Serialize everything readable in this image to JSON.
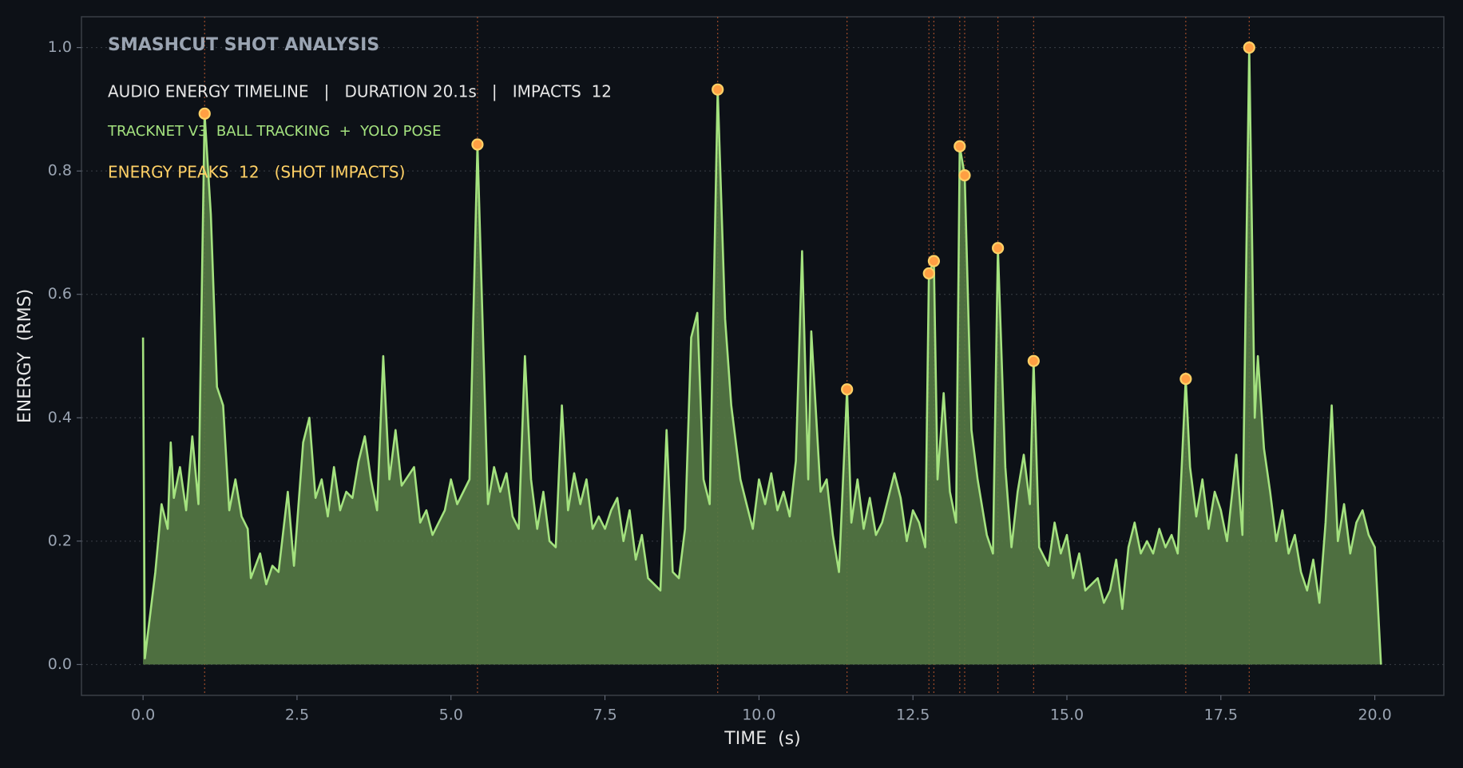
{
  "chart_data": {
    "type": "area",
    "title": "SMASHCUT  SHOT ANALYSIS",
    "subtitle": "AUDIO ENERGY TIMELINE   |   DURATION 20.1s   |   IMPACTS  12",
    "annotations": [
      {
        "text": "TRACKNET V3  BALL TRACKING  +  YOLO POSE",
        "color": "#a4e27f"
      },
      {
        "text": "ENERGY PEAKS  12   (SHOT IMPACTS)",
        "color": "#ffd166"
      }
    ],
    "xlabel": "TIME  (s)",
    "ylabel": "ENERGY  (RMS)",
    "xlim": [
      -1.0,
      21.12
    ],
    "ylim": [
      -0.05,
      1.05
    ],
    "xticks": [
      {
        "value": 0,
        "label": "0.0"
      },
      {
        "value": 2.5,
        "label": "2.5"
      },
      {
        "value": 5,
        "label": "5.0"
      },
      {
        "value": 7.5,
        "label": "7.5"
      },
      {
        "value": 10,
        "label": "10.0"
      },
      {
        "value": 12.5,
        "label": "12.5"
      },
      {
        "value": 15,
        "label": "15.0"
      },
      {
        "value": 17.5,
        "label": "17.5"
      },
      {
        "value": 20,
        "label": "20.0"
      }
    ],
    "yticks": [
      {
        "value": 0,
        "label": "0.0"
      },
      {
        "value": 0.2,
        "label": "0.2"
      },
      {
        "value": 0.4,
        "label": "0.4"
      },
      {
        "value": 0.6,
        "label": "0.6"
      },
      {
        "value": 0.8,
        "label": "0.8"
      },
      {
        "value": 1,
        "label": "1.0"
      }
    ],
    "grid": true,
    "color": "#a4e27f",
    "fill_color": "#557a45",
    "x": [
      0,
      0.03,
      0.2,
      0.3,
      0.4,
      0.45,
      0.5,
      0.6,
      0.7,
      0.8,
      0.9,
      1.0,
      1.1,
      1.2,
      1.3,
      1.4,
      1.5,
      1.6,
      1.7,
      1.75,
      1.9,
      2.0,
      2.1,
      2.2,
      2.35,
      2.45,
      2.6,
      2.7,
      2.8,
      2.9,
      3.0,
      3.1,
      3.2,
      3.3,
      3.4,
      3.5,
      3.6,
      3.7,
      3.8,
      3.9,
      4.0,
      4.1,
      4.2,
      4.4,
      4.5,
      4.6,
      4.7,
      4.9,
      5.0,
      5.1,
      5.2,
      5.3,
      5.43,
      5.5,
      5.6,
      5.7,
      5.8,
      5.9,
      6.0,
      6.1,
      6.2,
      6.3,
      6.4,
      6.5,
      6.6,
      6.7,
      6.8,
      6.9,
      7.0,
      7.1,
      7.2,
      7.3,
      7.4,
      7.5,
      7.6,
      7.7,
      7.8,
      7.9,
      8.0,
      8.1,
      8.2,
      8.4,
      8.5,
      8.6,
      8.7,
      8.8,
      8.9,
      9.0,
      9.1,
      9.2,
      9.33,
      9.45,
      9.55,
      9.7,
      9.8,
      9.9,
      10.0,
      10.1,
      10.2,
      10.3,
      10.4,
      10.5,
      10.6,
      10.7,
      10.8,
      10.85,
      11.0,
      11.1,
      11.2,
      11.3,
      11.43,
      11.5,
      11.6,
      11.7,
      11.8,
      11.9,
      12.0,
      12.2,
      12.3,
      12.4,
      12.5,
      12.6,
      12.7,
      12.76,
      12.84,
      12.9,
      13.0,
      13.1,
      13.2,
      13.26,
      13.34,
      13.45,
      13.55,
      13.7,
      13.8,
      13.88,
      14.0,
      14.1,
      14.2,
      14.3,
      14.4,
      14.46,
      14.55,
      14.7,
      14.8,
      14.9,
      15.0,
      15.1,
      15.2,
      15.3,
      15.5,
      15.6,
      15.7,
      15.8,
      15.9,
      16.0,
      16.1,
      16.2,
      16.3,
      16.4,
      16.5,
      16.6,
      16.7,
      16.8,
      16.93,
      17.0,
      17.1,
      17.2,
      17.3,
      17.4,
      17.5,
      17.6,
      17.75,
      17.85,
      17.96,
      18.05,
      18.1,
      18.2,
      18.3,
      18.4,
      18.5,
      18.6,
      18.7,
      18.8,
      18.9,
      19.0,
      19.1,
      19.2,
      19.3,
      19.4,
      19.5,
      19.6,
      19.7,
      19.8,
      19.9,
      20.0,
      20.1
    ],
    "values": [
      0.53,
      0.01,
      0.15,
      0.26,
      0.22,
      0.36,
      0.27,
      0.32,
      0.25,
      0.37,
      0.26,
      0.893,
      0.73,
      0.45,
      0.42,
      0.25,
      0.3,
      0.24,
      0.22,
      0.14,
      0.18,
      0.13,
      0.16,
      0.15,
      0.28,
      0.16,
      0.36,
      0.4,
      0.27,
      0.3,
      0.24,
      0.32,
      0.25,
      0.28,
      0.27,
      0.33,
      0.37,
      0.3,
      0.25,
      0.5,
      0.3,
      0.38,
      0.29,
      0.32,
      0.23,
      0.25,
      0.21,
      0.25,
      0.3,
      0.26,
      0.28,
      0.3,
      0.843,
      0.6,
      0.26,
      0.32,
      0.28,
      0.31,
      0.24,
      0.22,
      0.5,
      0.3,
      0.22,
      0.28,
      0.2,
      0.19,
      0.42,
      0.25,
      0.31,
      0.26,
      0.3,
      0.22,
      0.24,
      0.22,
      0.25,
      0.27,
      0.2,
      0.25,
      0.17,
      0.21,
      0.14,
      0.12,
      0.38,
      0.15,
      0.14,
      0.22,
      0.53,
      0.57,
      0.3,
      0.26,
      0.932,
      0.56,
      0.42,
      0.3,
      0.26,
      0.22,
      0.3,
      0.26,
      0.31,
      0.25,
      0.28,
      0.24,
      0.33,
      0.67,
      0.3,
      0.54,
      0.28,
      0.3,
      0.21,
      0.15,
      0.446,
      0.23,
      0.3,
      0.22,
      0.27,
      0.21,
      0.23,
      0.31,
      0.27,
      0.2,
      0.25,
      0.23,
      0.19,
      0.634,
      0.654,
      0.3,
      0.44,
      0.28,
      0.23,
      0.84,
      0.793,
      0.38,
      0.3,
      0.21,
      0.18,
      0.675,
      0.32,
      0.19,
      0.28,
      0.34,
      0.26,
      0.492,
      0.19,
      0.16,
      0.23,
      0.18,
      0.21,
      0.14,
      0.18,
      0.12,
      0.14,
      0.1,
      0.12,
      0.17,
      0.09,
      0.19,
      0.23,
      0.18,
      0.2,
      0.18,
      0.22,
      0.19,
      0.21,
      0.18,
      0.463,
      0.32,
      0.24,
      0.3,
      0.22,
      0.28,
      0.25,
      0.2,
      0.34,
      0.21,
      1.0,
      0.4,
      0.5,
      0.35,
      0.28,
      0.2,
      0.25,
      0.18,
      0.21,
      0.15,
      0.12,
      0.17,
      0.1,
      0.23,
      0.42,
      0.2,
      0.26,
      0.18,
      0.23,
      0.25,
      0.21,
      0.19,
      0.0
    ],
    "peaks": {
      "x": [
        1.0,
        5.43,
        9.33,
        11.43,
        12.76,
        12.84,
        13.26,
        13.34,
        13.88,
        14.46,
        16.93,
        17.96
      ],
      "values": [
        0.893,
        0.843,
        0.932,
        0.446,
        0.634,
        0.654,
        0.84,
        0.793,
        0.675,
        0.492,
        0.463,
        1.0
      ],
      "color": "#ff9f43",
      "edge_color": "#ffd166",
      "line_color": "#9a4a2a"
    }
  }
}
